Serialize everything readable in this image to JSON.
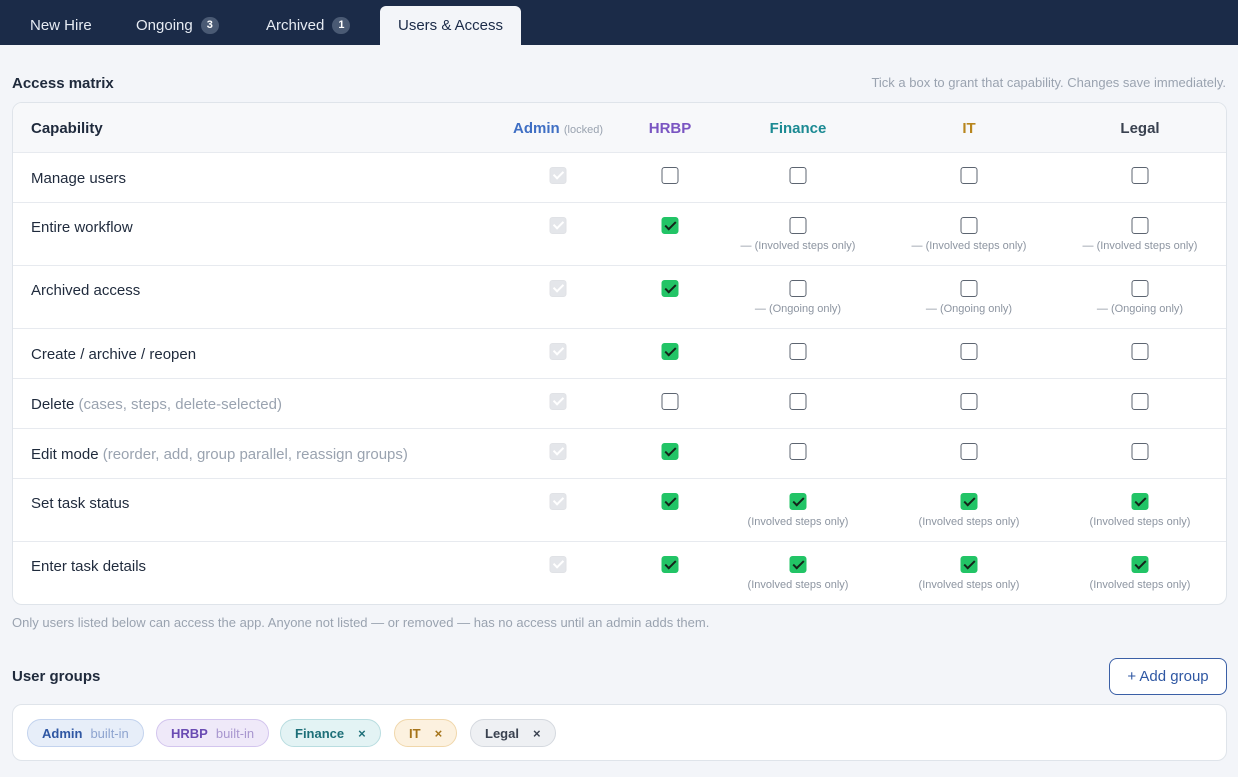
{
  "tabs": [
    {
      "label": "New Hire",
      "badge": ""
    },
    {
      "label": "Ongoing",
      "badge": "3"
    },
    {
      "label": "Archived",
      "badge": "1"
    },
    {
      "label": "Users & Access",
      "badge": ""
    }
  ],
  "access_matrix": {
    "title": "Access matrix",
    "hint": "Tick a box to grant that capability. Changes save immediately.",
    "header": {
      "capability": "Capability",
      "admin": "Admin",
      "admin_locked": "(locked)",
      "hrbp": "HRBP",
      "finance": "Finance",
      "it": "IT",
      "legal": "Legal"
    },
    "column_colors": {
      "admin": "#3f6fc4",
      "hrbp": "#7a55c2",
      "finance": "#1b8a93",
      "it": "#b8861e",
      "legal": "#3a4250"
    },
    "rows": [
      {
        "label": "Manage users",
        "sub": "",
        "hrbp": false,
        "finance": false,
        "it": false,
        "legal": false,
        "note": ""
      },
      {
        "label": "Entire workflow",
        "sub": "",
        "hrbp": true,
        "finance": false,
        "it": false,
        "legal": false,
        "note": "— (Involved steps only)"
      },
      {
        "label": "Archived access",
        "sub": "",
        "hrbp": true,
        "finance": false,
        "it": false,
        "legal": false,
        "note": "— (Ongoing only)"
      },
      {
        "label": "Create / archive / reopen",
        "sub": "",
        "hrbp": true,
        "finance": false,
        "it": false,
        "legal": false,
        "note": ""
      },
      {
        "label": "Delete",
        "sub": "(cases, steps, delete-selected)",
        "hrbp": false,
        "finance": false,
        "it": false,
        "legal": false,
        "note": ""
      },
      {
        "label": "Edit mode",
        "sub": "(reorder, add, group parallel, reassign groups)",
        "hrbp": true,
        "finance": false,
        "it": false,
        "legal": false,
        "note": ""
      },
      {
        "label": "Set task status",
        "sub": "",
        "hrbp": true,
        "finance": true,
        "it": true,
        "legal": true,
        "note": "(Involved steps only)"
      },
      {
        "label": "Enter task details",
        "sub": "",
        "hrbp": true,
        "finance": true,
        "it": true,
        "legal": true,
        "note": "(Involved steps only)"
      }
    ],
    "footnote": "Only users listed below can access the app. Anyone not listed — or removed — has no access until an admin adds them."
  },
  "user_groups": {
    "title": "User groups",
    "add_label": "+ Add group",
    "chips": [
      {
        "label": "Admin",
        "tag": "built-in",
        "removable": false
      },
      {
        "label": "HRBP",
        "tag": "built-in",
        "removable": false
      },
      {
        "label": "Finance",
        "tag": "",
        "removable": true
      },
      {
        "label": "IT",
        "tag": "",
        "removable": true
      },
      {
        "label": "Legal",
        "tag": "",
        "removable": true
      }
    ],
    "remove_glyph": "×"
  }
}
